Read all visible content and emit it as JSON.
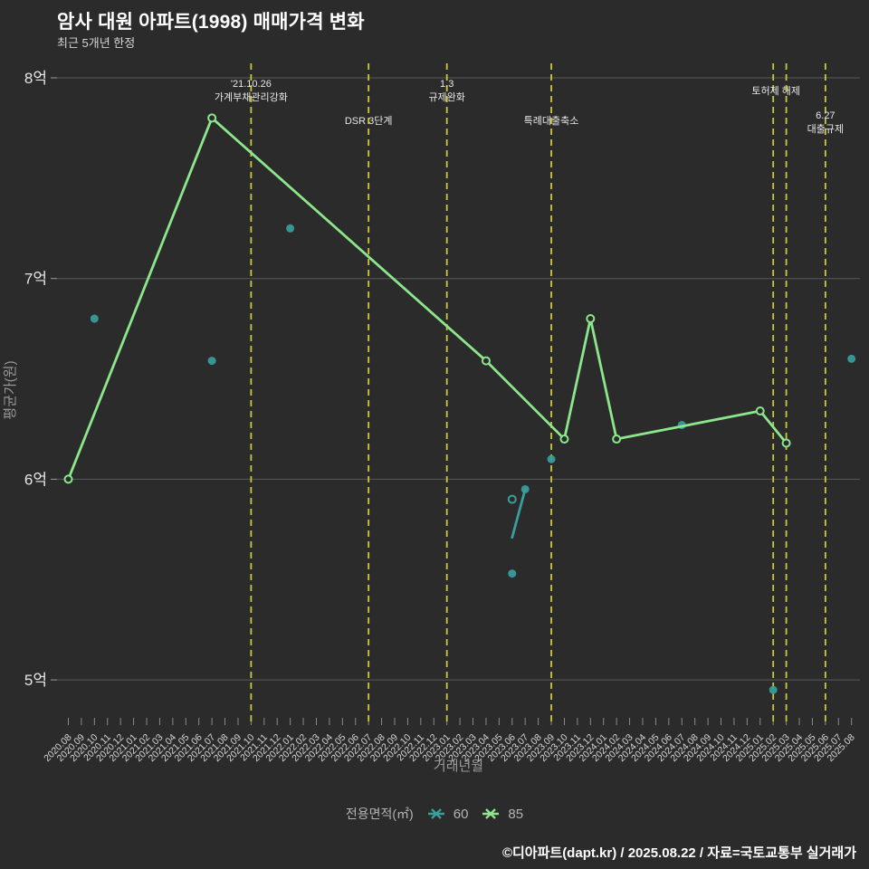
{
  "header": {
    "title": "암사 대원 아파트(1998) 매매가격 변화",
    "subtitle": "최근 5개년 한정"
  },
  "legend": {
    "label": "전용면적(㎡)",
    "items": [
      {
        "name": "60",
        "color": "#3a9e9e"
      },
      {
        "name": "85",
        "color": "#8ce68c"
      }
    ]
  },
  "footer": {
    "credit": "©디아파트(dapt.kr) / 2025.08.22 / 자료=국토교통부 실거래가"
  },
  "chart_data": {
    "type": "line",
    "title": "암사 대원 아파트(1998) 매매가격 변화",
    "subtitle": "최근 5개년 한정",
    "xlabel": "거래년월",
    "ylabel": "평균가(원)",
    "value_unit": "억원",
    "ylim": [
      4.7,
      8.1
    ],
    "grid": true,
    "legend_position": "bottom",
    "event_line_color": "#c9c93a",
    "background_color": "#2b2b2b",
    "ytick_values": [
      8,
      7,
      6,
      5
    ],
    "ytick_labels": [
      "8억",
      "7억",
      "6억",
      "5억"
    ],
    "x_categories": [
      "2020.08",
      "2020.09",
      "2020.10",
      "2020.11",
      "2020.12",
      "2021.01",
      "2021.02",
      "2021.03",
      "2021.04",
      "2021.05",
      "2021.06",
      "2021.07",
      "2021.08",
      "2021.09",
      "2021.10",
      "2021.11",
      "2021.12",
      "2022.01",
      "2022.02",
      "2022.03",
      "2022.04",
      "2022.05",
      "2022.06",
      "2022.07",
      "2022.08",
      "2022.09",
      "2022.10",
      "2022.11",
      "2022.12",
      "2023.01",
      "2023.02",
      "2023.03",
      "2023.04",
      "2023.05",
      "2023.06",
      "2023.07",
      "2023.08",
      "2023.09",
      "2023.10",
      "2023.11",
      "2023.12",
      "2024.01",
      "2024.02",
      "2024.03",
      "2024.04",
      "2024.05",
      "2024.06",
      "2024.07",
      "2024.08",
      "2024.09",
      "2024.10",
      "2024.11",
      "2024.12",
      "2025.01",
      "2025.02",
      "2025.03",
      "2025.04",
      "2025.05",
      "2025.06",
      "2025.07",
      "2025.08"
    ],
    "series": [
      {
        "name": "60",
        "color": "#3a9e9e",
        "line_points": [
          {
            "x": "2023.06",
            "v": 5.71
          },
          {
            "x": "2023.07",
            "v": 5.95,
            "marker": "dot"
          }
        ],
        "scatter_points": [
          {
            "x": "2020.10",
            "v": 6.8,
            "marker": "dot"
          },
          {
            "x": "2021.07",
            "v": 6.59,
            "marker": "dot"
          },
          {
            "x": "2022.01",
            "v": 7.25,
            "marker": "dot"
          },
          {
            "x": "2023.06",
            "v": 5.9,
            "marker": "ring"
          },
          {
            "x": "2023.06",
            "v": 5.53,
            "marker": "dot"
          },
          {
            "x": "2023.09",
            "v": 6.1,
            "marker": "dot"
          },
          {
            "x": "2024.07",
            "v": 6.27,
            "marker": "dot"
          },
          {
            "x": "2025.02",
            "v": 4.95,
            "marker": "dot"
          },
          {
            "x": "2025.08",
            "v": 6.6,
            "marker": "dot"
          }
        ]
      },
      {
        "name": "85",
        "color": "#8ce68c",
        "line_points": [
          {
            "x": "2020.08",
            "v": 6.0,
            "marker": "ring"
          },
          {
            "x": "2021.07",
            "v": 7.8,
            "marker": "ring"
          },
          {
            "x": "2023.04",
            "v": 6.59,
            "marker": "ring"
          },
          {
            "x": "2023.10",
            "v": 6.2,
            "marker": "ring"
          },
          {
            "x": "2023.12",
            "v": 6.8,
            "marker": "ring"
          },
          {
            "x": "2024.02",
            "v": 6.2,
            "marker": "ring"
          },
          {
            "x": "2025.01",
            "v": 6.34,
            "marker": "ring"
          },
          {
            "x": "2025.03",
            "v": 6.18,
            "marker": "ring"
          }
        ],
        "scatter_points": []
      }
    ],
    "event_lines": [
      {
        "x": "2021.10",
        "label_lines": [
          "'21.10.26",
          "가계부채관리강화"
        ],
        "label_baseline_y": 96
      },
      {
        "x": "2022.07",
        "label_lines": [
          "DSR 3단계"
        ],
        "label_baseline_y": 137
      },
      {
        "x": "2023.01",
        "label_lines": [
          "1.3",
          "규제완화"
        ],
        "label_baseline_y": 96
      },
      {
        "x": "2023.09",
        "label_lines": [
          "특례대출축소"
        ],
        "label_baseline_y": 137
      },
      {
        "x": "2025.02",
        "label_lines": [
          "토허제 해제"
        ],
        "label_baseline_y": 104,
        "label_dx": 3
      },
      {
        "x": "2025.03",
        "label_lines": []
      },
      {
        "x": "2025.06",
        "label_lines": [
          "6.27",
          "대출규제"
        ],
        "label_baseline_y": 131
      }
    ]
  }
}
